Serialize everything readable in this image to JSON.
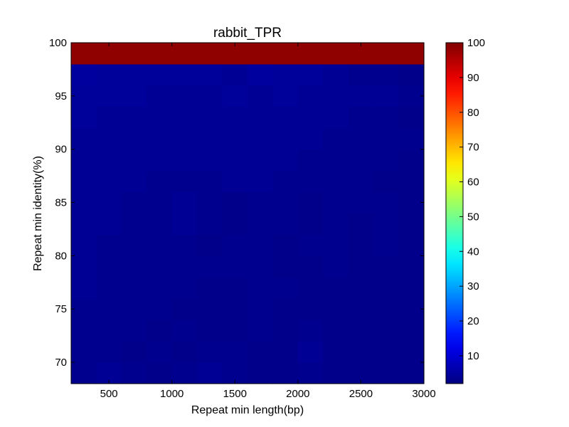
{
  "chart_data": {
    "type": "heatmap",
    "title": "rabbit_TPR",
    "xlabel": "Repeat min length(bp)",
    "ylabel": "Repeat min identity(%)",
    "xlim": [
      200,
      3000
    ],
    "ylim": [
      68,
      100
    ],
    "x_edges": [
      200,
      400,
      600,
      800,
      1000,
      1200,
      1400,
      1600,
      1800,
      2000,
      2200,
      2400,
      2600,
      2800,
      3000
    ],
    "y_edges": [
      68,
      70,
      72,
      74,
      76,
      78,
      80,
      82,
      84,
      86,
      88,
      90,
      92,
      94,
      96,
      98,
      100
    ],
    "x_ticks": [
      500,
      1000,
      1500,
      2000,
      2500,
      3000
    ],
    "x_tick_labels": [
      "500",
      "1000",
      "1500",
      "2000",
      "2500",
      "3000"
    ],
    "y_ticks": [
      70,
      75,
      80,
      85,
      90,
      95,
      100
    ],
    "y_tick_labels": [
      "70",
      "75",
      "80",
      "85",
      "90",
      "95",
      "100"
    ],
    "values": [
      [
        3.5,
        4.0,
        3.5,
        3.0,
        3.5,
        4.0,
        3.5,
        3.0,
        3.0,
        3.5,
        3.0,
        3.0,
        3.0,
        3.0
      ],
      [
        3.5,
        3.5,
        3.0,
        3.5,
        3.0,
        3.5,
        3.5,
        3.0,
        3.0,
        4.0,
        3.0,
        3.0,
        3.0,
        3.0
      ],
      [
        3.5,
        3.5,
        3.5,
        3.0,
        3.5,
        3.0,
        3.0,
        3.5,
        3.0,
        3.5,
        3.0,
        3.0,
        3.0,
        3.0
      ],
      [
        3.5,
        3.5,
        3.5,
        3.5,
        3.0,
        3.0,
        3.0,
        3.5,
        3.0,
        3.0,
        3.0,
        3.0,
        3.0,
        3.0
      ],
      [
        4.0,
        3.5,
        3.5,
        3.5,
        3.5,
        3.0,
        3.0,
        3.5,
        3.5,
        3.0,
        3.0,
        3.0,
        3.0,
        3.0
      ],
      [
        4.0,
        3.5,
        3.5,
        3.5,
        3.5,
        3.5,
        3.5,
        3.5,
        3.0,
        3.0,
        3.5,
        3.0,
        3.0,
        3.0
      ],
      [
        4.0,
        3.5,
        3.5,
        3.5,
        3.5,
        3.0,
        3.5,
        3.5,
        3.0,
        3.5,
        3.5,
        3.0,
        3.5,
        3.0
      ],
      [
        4.0,
        4.0,
        3.5,
        3.5,
        4.0,
        3.5,
        3.0,
        3.5,
        3.5,
        3.0,
        3.5,
        3.0,
        3.5,
        3.0
      ],
      [
        4.0,
        4.0,
        3.5,
        3.5,
        4.0,
        3.5,
        3.0,
        3.5,
        3.5,
        3.0,
        3.5,
        3.5,
        3.5,
        3.0
      ],
      [
        4.0,
        4.0,
        4.0,
        3.5,
        3.5,
        3.5,
        4.0,
        4.0,
        3.5,
        3.5,
        3.5,
        3.5,
        3.0,
        3.0
      ],
      [
        4.0,
        4.0,
        4.0,
        4.0,
        4.0,
        4.0,
        4.0,
        4.0,
        4.0,
        3.5,
        3.5,
        3.5,
        3.5,
        3.0
      ],
      [
        4.0,
        4.0,
        4.0,
        4.0,
        4.0,
        4.0,
        4.0,
        4.0,
        4.0,
        4.0,
        3.5,
        3.5,
        3.5,
        3.5
      ],
      [
        4.5,
        4.0,
        4.0,
        4.0,
        4.0,
        4.0,
        4.0,
        4.0,
        4.0,
        4.0,
        4.0,
        3.5,
        3.5,
        3.0
      ],
      [
        4.5,
        4.5,
        4.5,
        4.0,
        4.0,
        4.0,
        4.5,
        4.0,
        4.5,
        4.0,
        4.0,
        4.0,
        4.0,
        3.5
      ],
      [
        5.0,
        4.5,
        4.5,
        4.5,
        4.5,
        4.5,
        4.0,
        5.0,
        4.5,
        4.5,
        4.0,
        3.5,
        3.5,
        3.0
      ],
      [
        98.5,
        98.5,
        98.5,
        98.5,
        98.5,
        98.5,
        98.5,
        98.5,
        98.5,
        98.5,
        98.5,
        98.5,
        98.5,
        98.5
      ]
    ],
    "colormap": "jet",
    "colorbar": {
      "range": [
        2,
        100
      ],
      "ticks": [
        10,
        20,
        30,
        40,
        50,
        60,
        70,
        80,
        90,
        100
      ],
      "tick_labels": [
        "10",
        "20",
        "30",
        "40",
        "50",
        "60",
        "70",
        "80",
        "90",
        "100"
      ]
    },
    "grid": false,
    "legend": "none"
  }
}
